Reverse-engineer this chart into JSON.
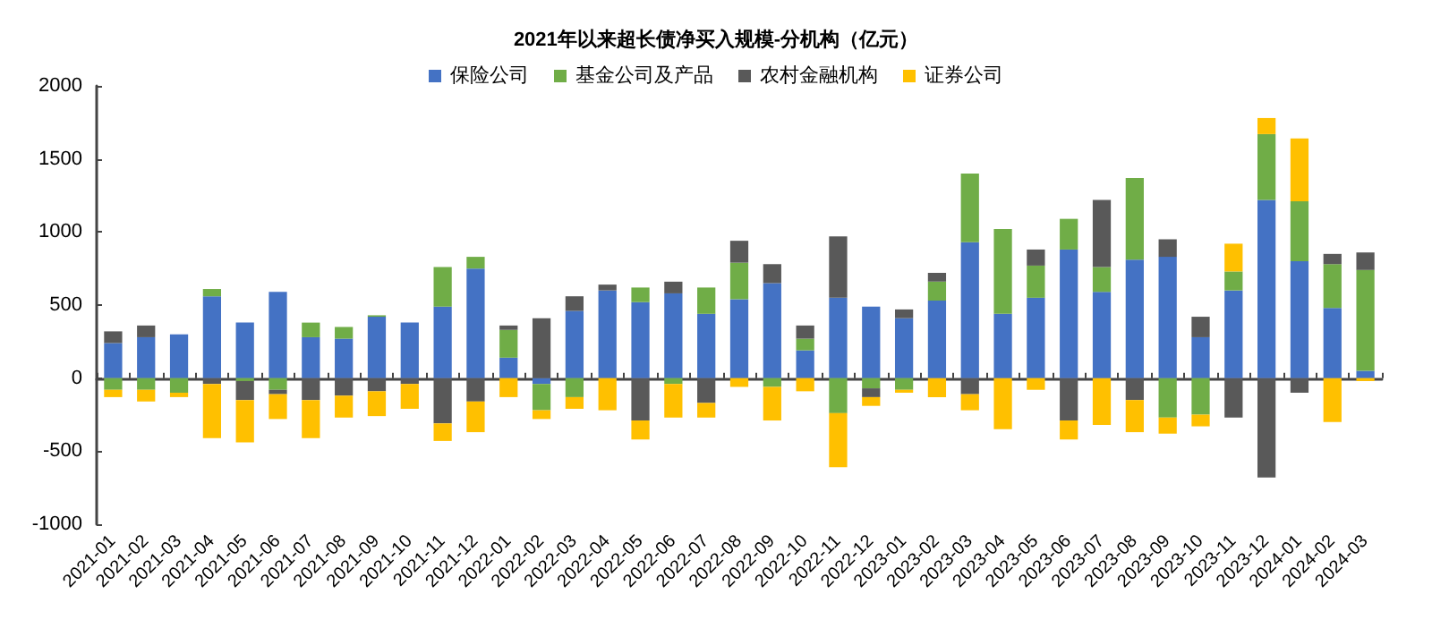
{
  "chart_data": {
    "type": "bar",
    "title": "2021年以来超长债净买入规模-分机构（亿元）",
    "stacked": true,
    "legend": "top",
    "categories": [
      "2021-01",
      "2021-02",
      "2021-03",
      "2021-04",
      "2021-05",
      "2021-06",
      "2021-07",
      "2021-08",
      "2021-09",
      "2021-10",
      "2021-11",
      "2021-12",
      "2022-01",
      "2022-02",
      "2022-03",
      "2022-04",
      "2022-05",
      "2022-06",
      "2022-07",
      "2022-08",
      "2022-09",
      "2022-10",
      "2022-11",
      "2022-12",
      "2023-01",
      "2023-02",
      "2023-03",
      "2023-04",
      "2023-05",
      "2023-06",
      "2023-07",
      "2023-08",
      "2023-09",
      "2023-10",
      "2023-11",
      "2023-12",
      "2024-01",
      "2024-02",
      "2024-03"
    ],
    "ylim": [
      -1000,
      2000
    ],
    "yticks": [
      -1000,
      -500,
      0,
      500,
      1000,
      1500,
      2000
    ],
    "series": [
      {
        "name": "保险公司",
        "color": "#4472c4",
        "values": [
          240,
          280,
          300,
          560,
          380,
          590,
          280,
          270,
          420,
          380,
          490,
          750,
          140,
          -40,
          460,
          600,
          520,
          580,
          440,
          540,
          650,
          190,
          550,
          490,
          410,
          530,
          930,
          440,
          550,
          880,
          590,
          810,
          830,
          280,
          600,
          1220,
          800,
          480,
          50
        ]
      },
      {
        "name": "基金公司及产品",
        "color": "#70ad47",
        "values": [
          -80,
          -80,
          -100,
          50,
          -20,
          -80,
          100,
          80,
          10,
          null,
          270,
          80,
          190,
          -180,
          -130,
          null,
          100,
          -40,
          180,
          250,
          -60,
          80,
          -240,
          -70,
          -80,
          130,
          470,
          580,
          220,
          210,
          170,
          560,
          -270,
          -250,
          130,
          450,
          410,
          300,
          690
        ]
      },
      {
        "name": "农村金融机构",
        "color": "#595959",
        "values": [
          80,
          80,
          null,
          -40,
          -130,
          -30,
          -150,
          -120,
          -90,
          -40,
          -310,
          -160,
          30,
          410,
          100,
          40,
          -290,
          80,
          -170,
          150,
          130,
          90,
          420,
          -60,
          60,
          60,
          -110,
          null,
          110,
          -290,
          460,
          -150,
          120,
          140,
          -270,
          -680,
          -100,
          70,
          120
        ]
      },
      {
        "name": "证券公司",
        "color": "#ffc000",
        "values": [
          -50,
          -80,
          -30,
          -370,
          -290,
          -170,
          -260,
          -150,
          -170,
          -170,
          -120,
          -210,
          -130,
          -60,
          -80,
          -220,
          -130,
          -230,
          -100,
          -60,
          -230,
          -90,
          -370,
          -60,
          -20,
          -130,
          -110,
          -350,
          -80,
          -130,
          -320,
          -220,
          -110,
          -80,
          190,
          110,
          430,
          -300,
          -20
        ]
      }
    ]
  }
}
